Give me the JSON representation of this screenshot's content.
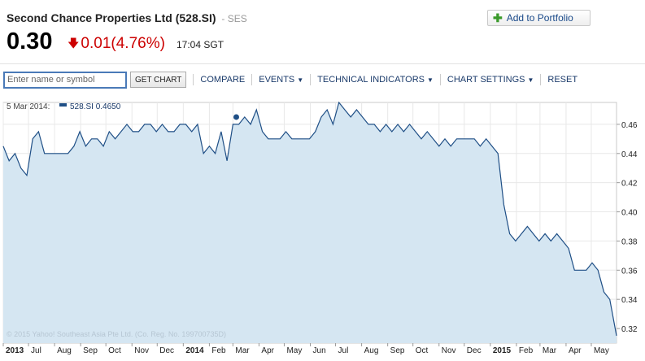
{
  "header": {
    "title": "Second Chance Properties Ltd (528.SI)",
    "exchange": "- SES",
    "price": "0.30",
    "change": "0.01",
    "change_pct": "(4.76%)",
    "time": "17:04 SGT",
    "portfolio_label": "Add to Portfolio"
  },
  "toolbar": {
    "search_placeholder": "Enter name or symbol",
    "get_chart_label": "GET CHART",
    "compare_label": "COMPARE",
    "events_label": "EVENTS",
    "technical_label": "TECHNICAL INDICATORS",
    "settings_label": "CHART SETTINGS",
    "reset_label": "RESET"
  },
  "colors": {
    "line": "#1f4f86",
    "fill": "#d5e6f2",
    "down": "#cc0000"
  },
  "chart_data": {
    "type": "area",
    "series_name": "528.SI",
    "legend_date": "5 Mar 2014:",
    "legend_value": "528.SI 0.4650",
    "watermark": "© 2015 Yahoo! Southeast Asia Pte Ltd. (Co. Reg. No. 199700735D)",
    "x_range": [
      "2013-06-01",
      "2015-05-31"
    ],
    "ylim": [
      0.31,
      0.475
    ],
    "y_ticks": [
      0.32,
      0.34,
      0.36,
      0.38,
      0.4,
      0.42,
      0.44,
      0.46
    ],
    "y_tick_labels": [
      "0.32",
      "0.34",
      "0.36",
      "0.38",
      "0.40",
      "0.42",
      "0.44",
      "0.46"
    ],
    "x_ticks": [
      {
        "label": "2013",
        "date": "2013-06-01",
        "bold": true
      },
      {
        "label": "Jul",
        "date": "2013-07-01"
      },
      {
        "label": "Aug",
        "date": "2013-08-01"
      },
      {
        "label": "Sep",
        "date": "2013-09-01"
      },
      {
        "label": "Oct",
        "date": "2013-10-01"
      },
      {
        "label": "Nov",
        "date": "2013-11-01"
      },
      {
        "label": "Dec",
        "date": "2013-12-01"
      },
      {
        "label": "2014",
        "date": "2014-01-01",
        "bold": true
      },
      {
        "label": "Feb",
        "date": "2014-02-01"
      },
      {
        "label": "Mar",
        "date": "2014-03-01"
      },
      {
        "label": "Apr",
        "date": "2014-04-01"
      },
      {
        "label": "May",
        "date": "2014-05-01"
      },
      {
        "label": "Jun",
        "date": "2014-06-01"
      },
      {
        "label": "Jul",
        "date": "2014-07-01"
      },
      {
        "label": "Aug",
        "date": "2014-08-01"
      },
      {
        "label": "Sep",
        "date": "2014-09-01"
      },
      {
        "label": "Oct",
        "date": "2014-10-01"
      },
      {
        "label": "Nov",
        "date": "2014-11-01"
      },
      {
        "label": "Dec",
        "date": "2014-12-01"
      },
      {
        "label": "2015",
        "date": "2015-01-01",
        "bold": true
      },
      {
        "label": "Feb",
        "date": "2015-02-01"
      },
      {
        "label": "Mar",
        "date": "2015-03-01"
      },
      {
        "label": "Apr",
        "date": "2015-04-01"
      },
      {
        "label": "May",
        "date": "2015-05-01"
      }
    ],
    "marker": {
      "date": "2014-03-05",
      "value": 0.465
    },
    "x": [
      "2013-06-01",
      "2013-06-08",
      "2013-06-15",
      "2013-06-22",
      "2013-06-29",
      "2013-07-06",
      "2013-07-13",
      "2013-07-20",
      "2013-07-27",
      "2013-08-03",
      "2013-08-10",
      "2013-08-17",
      "2013-08-24",
      "2013-08-31",
      "2013-09-07",
      "2013-09-14",
      "2013-09-21",
      "2013-09-28",
      "2013-10-05",
      "2013-10-12",
      "2013-10-19",
      "2013-10-26",
      "2013-11-02",
      "2013-11-09",
      "2013-11-16",
      "2013-11-23",
      "2013-11-30",
      "2013-12-07",
      "2013-12-14",
      "2013-12-21",
      "2013-12-28",
      "2014-01-04",
      "2014-01-11",
      "2014-01-18",
      "2014-01-25",
      "2014-02-01",
      "2014-02-08",
      "2014-02-15",
      "2014-02-22",
      "2014-03-01",
      "2014-03-08",
      "2014-03-15",
      "2014-03-22",
      "2014-03-29",
      "2014-04-05",
      "2014-04-12",
      "2014-04-19",
      "2014-04-26",
      "2014-05-03",
      "2014-05-10",
      "2014-05-17",
      "2014-05-24",
      "2014-05-31",
      "2014-06-07",
      "2014-06-14",
      "2014-06-21",
      "2014-06-28",
      "2014-07-05",
      "2014-07-12",
      "2014-07-19",
      "2014-07-26",
      "2014-08-02",
      "2014-08-09",
      "2014-08-16",
      "2014-08-23",
      "2014-08-30",
      "2014-09-06",
      "2014-09-13",
      "2014-09-20",
      "2014-09-27",
      "2014-10-04",
      "2014-10-11",
      "2014-10-18",
      "2014-10-25",
      "2014-11-01",
      "2014-11-08",
      "2014-11-15",
      "2014-11-22",
      "2014-11-29",
      "2014-12-06",
      "2014-12-13",
      "2014-12-20",
      "2014-12-27",
      "2015-01-03",
      "2015-01-10",
      "2015-01-17",
      "2015-01-24",
      "2015-01-31",
      "2015-02-07",
      "2015-02-14",
      "2015-02-21",
      "2015-02-28",
      "2015-03-07",
      "2015-03-14",
      "2015-03-21",
      "2015-03-28",
      "2015-04-04",
      "2015-04-11",
      "2015-04-18",
      "2015-04-25",
      "2015-05-02",
      "2015-05-09",
      "2015-05-16",
      "2015-05-23",
      "2015-05-31"
    ],
    "values": [
      0.445,
      0.435,
      0.44,
      0.43,
      0.425,
      0.45,
      0.455,
      0.44,
      0.44,
      0.44,
      0.44,
      0.44,
      0.445,
      0.455,
      0.445,
      0.45,
      0.45,
      0.445,
      0.455,
      0.45,
      0.455,
      0.46,
      0.455,
      0.455,
      0.46,
      0.46,
      0.455,
      0.46,
      0.455,
      0.455,
      0.46,
      0.46,
      0.455,
      0.46,
      0.44,
      0.445,
      0.44,
      0.455,
      0.435,
      0.46,
      0.46,
      0.465,
      0.46,
      0.47,
      0.455,
      0.45,
      0.45,
      0.45,
      0.455,
      0.45,
      0.45,
      0.45,
      0.45,
      0.455,
      0.465,
      0.47,
      0.46,
      0.475,
      0.47,
      0.465,
      0.47,
      0.465,
      0.46,
      0.46,
      0.455,
      0.46,
      0.455,
      0.46,
      0.455,
      0.46,
      0.455,
      0.45,
      0.455,
      0.45,
      0.445,
      0.45,
      0.445,
      0.45,
      0.45,
      0.45,
      0.45,
      0.445,
      0.45,
      0.445,
      0.44,
      0.405,
      0.385,
      0.38,
      0.385,
      0.39,
      0.385,
      0.38,
      0.385,
      0.38,
      0.385,
      0.38,
      0.375,
      0.36,
      0.36,
      0.36,
      0.365,
      0.36,
      0.345,
      0.34,
      0.315
    ]
  }
}
